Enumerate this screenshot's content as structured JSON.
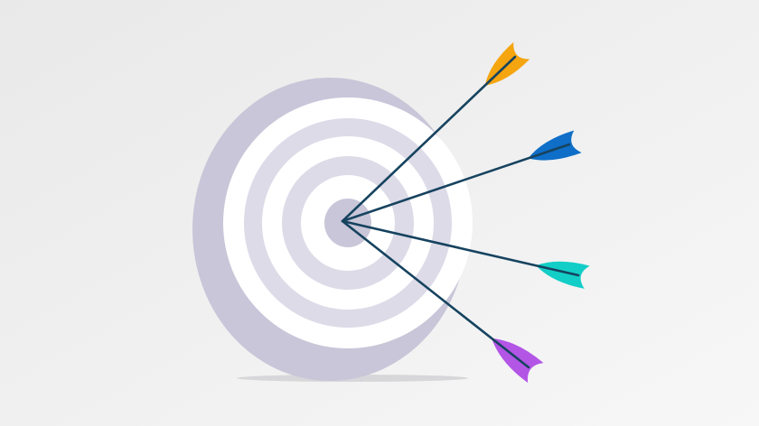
{
  "illustration": {
    "subject": "target-with-arrows",
    "colors": {
      "background_top": "#e9e9e9",
      "background_bottom": "#f7f7f7",
      "target_back": "#c8c6d8",
      "target_ring_light": "#ffffff",
      "target_ring_dark": "#dddbe8",
      "target_center": "#c8c6d8",
      "shadow": "#d7d7da",
      "arrow_shaft": "#16435f"
    },
    "arrows": [
      {
        "name": "orange-arrow",
        "color": "#f5a50f"
      },
      {
        "name": "blue-arrow",
        "color": "#0e6ec8"
      },
      {
        "name": "teal-arrow",
        "color": "#12cec7"
      },
      {
        "name": "purple-arrow",
        "color": "#b356e6"
      }
    ]
  }
}
